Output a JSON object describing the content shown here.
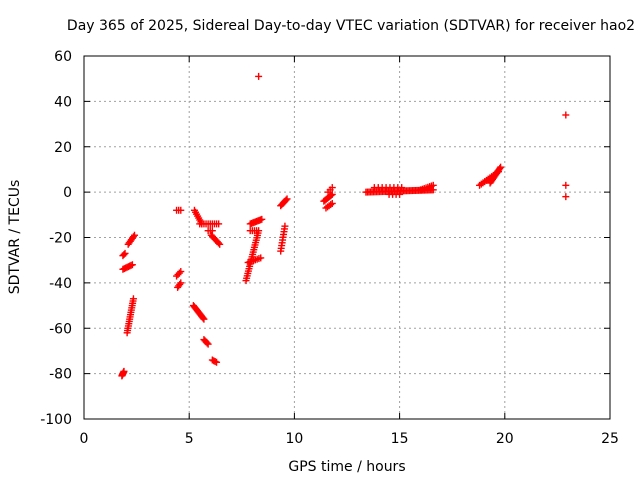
{
  "chart_data": {
    "type": "scatter",
    "title": "Day 365 of 2025, Sidereal Day-to-day VTEC variation (SDTVAR) for receiver hao2",
    "xlabel": "GPS time / hours",
    "ylabel": "SDTVAR / TECUs",
    "xlim": [
      0,
      25
    ],
    "ylim": [
      -100,
      60
    ],
    "xticks": [
      0,
      5,
      10,
      15,
      20,
      25
    ],
    "yticks": [
      -100,
      -80,
      -60,
      -40,
      -20,
      0,
      20,
      40,
      60
    ],
    "grid": true,
    "marker": "+",
    "color": "#ff0000",
    "segments": [
      {
        "x0": 1.8,
        "x1": 1.9,
        "y0": -81,
        "y1": -79,
        "n": 8
      },
      {
        "x0": 1.85,
        "x1": 1.95,
        "y0": -28,
        "y1": -27,
        "n": 3
      },
      {
        "x0": 1.85,
        "x1": 2.3,
        "y0": -34,
        "y1": -32,
        "n": 8
      },
      {
        "x0": 2.05,
        "x1": 2.35,
        "y0": -62,
        "y1": -47,
        "n": 16
      },
      {
        "x0": 2.1,
        "x1": 2.4,
        "y0": -23,
        "y1": -19,
        "n": 7
      },
      {
        "x0": 4.4,
        "x1": 4.6,
        "y0": -8,
        "y1": -8,
        "n": 3
      },
      {
        "x0": 4.4,
        "x1": 4.6,
        "y0": -37,
        "y1": -35,
        "n": 4
      },
      {
        "x0": 4.45,
        "x1": 4.6,
        "y0": -42,
        "y1": -40,
        "n": 4
      },
      {
        "x0": 5.2,
        "x1": 5.7,
        "y0": -50,
        "y1": -56,
        "n": 14
      },
      {
        "x0": 5.25,
        "x1": 5.6,
        "y0": -8,
        "y1": -14,
        "n": 8
      },
      {
        "x0": 5.5,
        "x1": 5.9,
        "y0": -14,
        "y1": -14,
        "n": 5
      },
      {
        "x0": 5.7,
        "x1": 5.9,
        "y0": -65,
        "y1": -67,
        "n": 5
      },
      {
        "x0": 5.9,
        "x1": 6.1,
        "y0": -17,
        "y1": -17,
        "n": 3
      },
      {
        "x0": 6.0,
        "x1": 6.4,
        "y0": -14,
        "y1": -14,
        "n": 5
      },
      {
        "x0": 6.05,
        "x1": 6.45,
        "y0": -19,
        "y1": -23,
        "n": 8
      },
      {
        "x0": 6.1,
        "x1": 6.3,
        "y0": -74,
        "y1": -75,
        "n": 4
      },
      {
        "x0": 7.7,
        "x1": 8.3,
        "y0": -39,
        "y1": -17,
        "n": 22
      },
      {
        "x0": 7.8,
        "x1": 8.4,
        "y0": -31,
        "y1": -29,
        "n": 8
      },
      {
        "x0": 7.9,
        "x1": 8.45,
        "y0": -14,
        "y1": -12,
        "n": 10
      },
      {
        "x0": 7.9,
        "x1": 8.2,
        "y0": -17,
        "y1": -17,
        "n": 4
      },
      {
        "x0": 8.3,
        "x1": 8.3,
        "y0": 51,
        "y1": 51,
        "n": 1
      },
      {
        "x0": 9.35,
        "x1": 9.55,
        "y0": -26,
        "y1": -15,
        "n": 10
      },
      {
        "x0": 9.35,
        "x1": 9.65,
        "y0": -6,
        "y1": -3,
        "n": 7
      },
      {
        "x0": 11.4,
        "x1": 11.8,
        "y0": -4,
        "y1": -1,
        "n": 8
      },
      {
        "x0": 11.5,
        "x1": 11.8,
        "y0": -7,
        "y1": -5,
        "n": 5
      },
      {
        "x0": 11.6,
        "x1": 11.8,
        "y0": 0,
        "y1": 2,
        "n": 3
      },
      {
        "x0": 13.4,
        "x1": 16.6,
        "y0": 0,
        "y1": 1,
        "n": 46
      },
      {
        "x0": 13.8,
        "x1": 15.1,
        "y0": 2,
        "y1": 2,
        "n": 8
      },
      {
        "x0": 14.5,
        "x1": 15.0,
        "y0": -1,
        "y1": -1,
        "n": 4
      },
      {
        "x0": 16.0,
        "x1": 16.6,
        "y0": 1,
        "y1": 3,
        "n": 8
      },
      {
        "x0": 18.8,
        "x1": 19.7,
        "y0": 3,
        "y1": 9,
        "n": 12
      },
      {
        "x0": 19.3,
        "x1": 19.8,
        "y0": 4,
        "y1": 11,
        "n": 14
      },
      {
        "x0": 22.9,
        "x1": 22.9,
        "y0": 34,
        "y1": 34,
        "n": 1
      },
      {
        "x0": 22.9,
        "x1": 22.9,
        "y0": 3,
        "y1": 3,
        "n": 1
      },
      {
        "x0": 22.9,
        "x1": 22.9,
        "y0": -2,
        "y1": -2,
        "n": 1
      }
    ]
  }
}
